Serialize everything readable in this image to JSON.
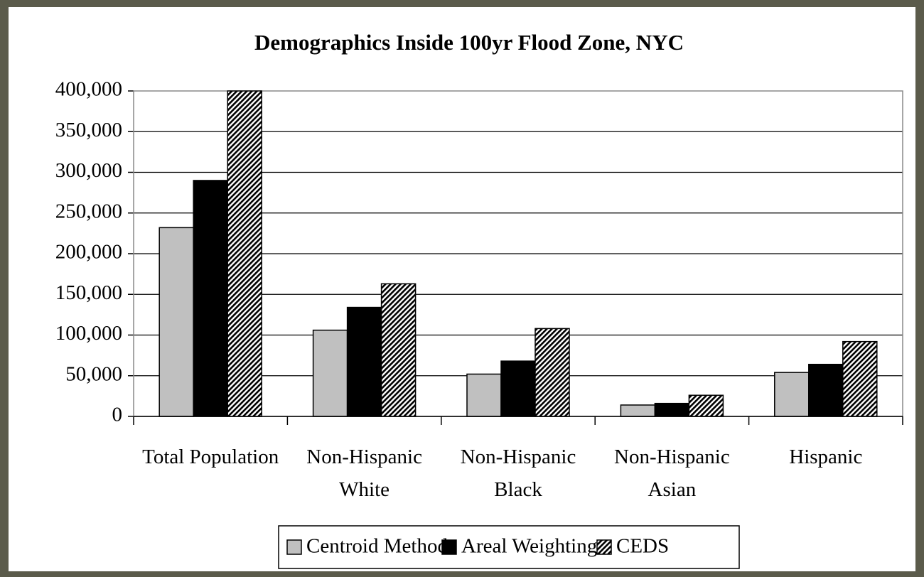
{
  "chart_data": {
    "type": "bar",
    "title": "Demographics Inside 100yr Flood Zone, NYC",
    "categories": [
      "Total Population",
      "Non-Hispanic White",
      "Non-Hispanic Black",
      "Non-Hispanic Asian",
      "Hispanic"
    ],
    "series": [
      {
        "name": "Centroid Method",
        "color": "#c0c0c0",
        "values": [
          232000,
          106000,
          52000,
          14000,
          54000
        ]
      },
      {
        "name": "Areal Weighting",
        "color": "#000000",
        "values": [
          290000,
          134000,
          68000,
          16000,
          64000
        ]
      },
      {
        "name": "CEDS",
        "color": "#000000",
        "pattern": "diagonal",
        "values": [
          400000,
          163000,
          108000,
          26000,
          92000
        ]
      }
    ],
    "ylim": [
      0,
      400000
    ],
    "yticks": [
      0,
      {
        "value": 50000,
        "label": "50,000"
      },
      {
        "value": 100000,
        "label": "100,000"
      },
      {
        "value": 150000,
        "label": "150,000"
      },
      {
        "value": 200000,
        "label": "200,000"
      },
      {
        "value": 250000,
        "label": "250,000"
      },
      {
        "value": 300000,
        "label": "300,000"
      },
      {
        "value": 350000,
        "label": "350,000"
      },
      {
        "value": 400000,
        "label": "400,000"
      }
    ],
    "grid": true,
    "legend": "bottom"
  }
}
